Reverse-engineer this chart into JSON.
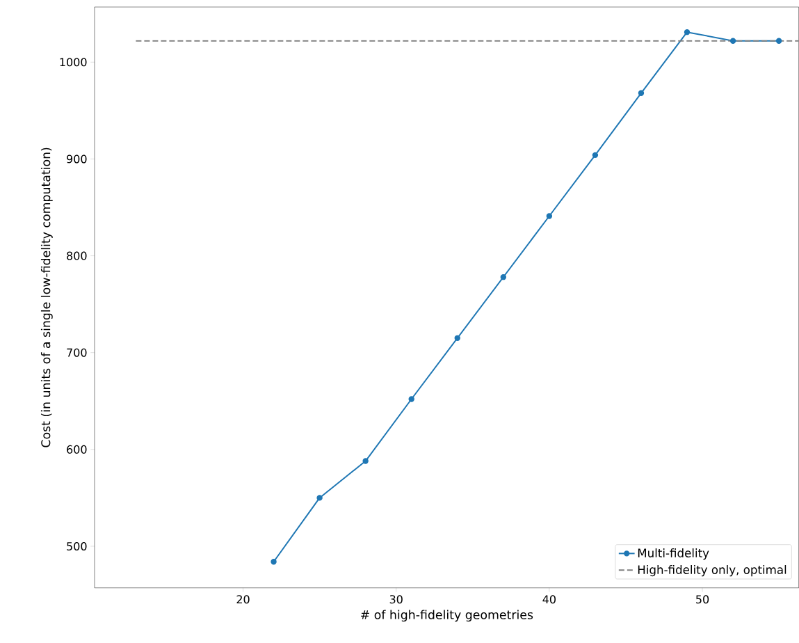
{
  "chart_data": {
    "type": "line",
    "xlabel": "# of high-fidelity geometries",
    "ylabel": "Cost (in units of a single low-fidelity computation)",
    "xlim": [
      10.3,
      56.3
    ],
    "xticks": [
      20,
      30,
      40,
      50
    ],
    "ylim": [
      457,
      1057
    ],
    "yticks": [
      500,
      600,
      700,
      800,
      900,
      1000
    ],
    "grid": false,
    "legend": "bottom right",
    "series": [
      {
        "name": "Multi-fidelity",
        "color": "#1f77b4",
        "marker": "circle",
        "line_style": "solid",
        "x": [
          22,
          25,
          28,
          31,
          34,
          37,
          40,
          43,
          46,
          49,
          52,
          55
        ],
        "values": [
          484,
          550,
          588,
          652,
          715,
          778,
          841,
          904,
          968,
          1031,
          1022,
          1022
        ]
      },
      {
        "name": "High-fidelity only, optimal",
        "color": "#7f7f7f",
        "marker": "none",
        "line_style": "dashed",
        "x": [
          13,
          56.3
        ],
        "values": [
          1022,
          1022
        ]
      }
    ]
  }
}
